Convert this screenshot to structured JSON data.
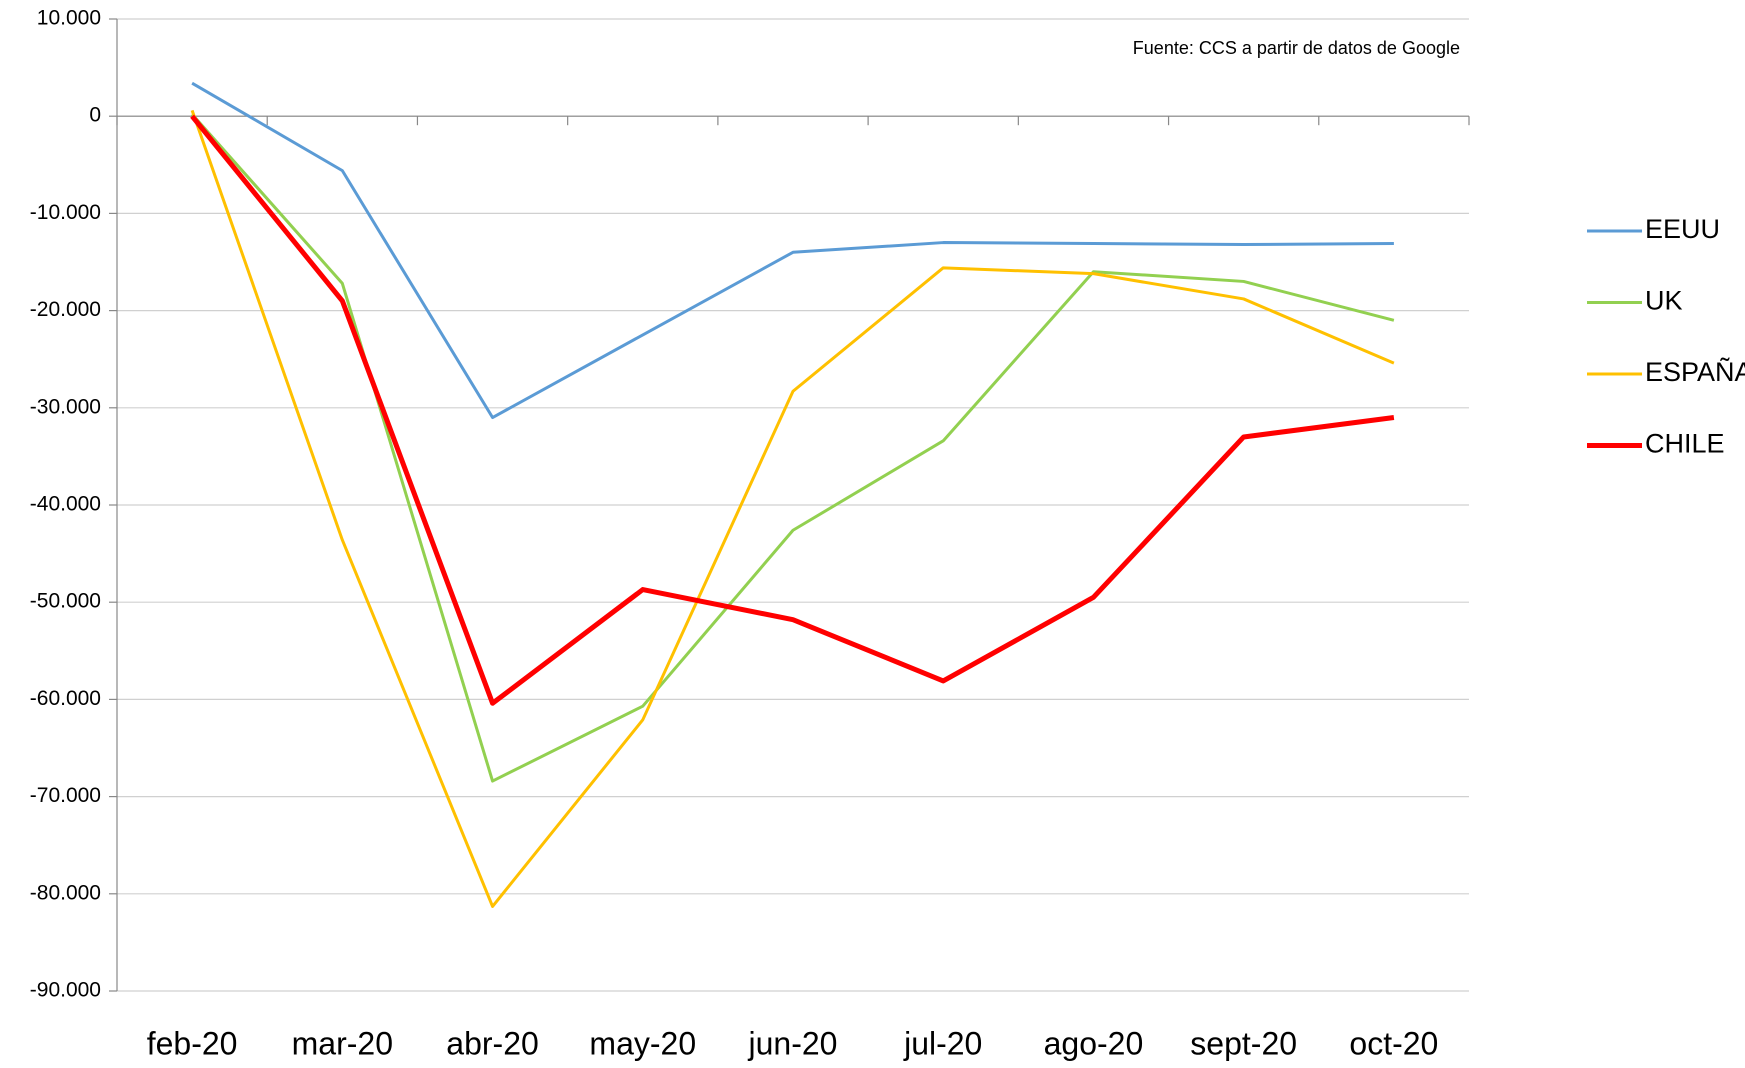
{
  "chart_data": {
    "type": "line",
    "annotation": "Fuente: CCS a partir de datos de Google",
    "categories": [
      "feb-20",
      "mar-20",
      "abr-20",
      "may-20",
      "jun-20",
      "jul-20",
      "ago-20",
      "sept-20",
      "oct-20"
    ],
    "series": [
      {
        "name": "EEUU",
        "color": "#5b9bd5",
        "values": [
          3400,
          -5600,
          -31000,
          -22500,
          -14000,
          -13000,
          -13100,
          -13200,
          -13100
        ]
      },
      {
        "name": "UK",
        "color": "#92d050",
        "values": [
          200,
          -17200,
          -68400,
          -60700,
          -42600,
          -33400,
          -16000,
          -17000,
          -21000
        ]
      },
      {
        "name": "ESPAÑA",
        "color": "#ffc000",
        "values": [
          600,
          -43600,
          -81300,
          -62100,
          -28300,
          -15600,
          -16200,
          -18800,
          -25400
        ]
      },
      {
        "name": "CHILE",
        "color": "#ff0000",
        "values": [
          0,
          -19000,
          -60400,
          -48700,
          -51800,
          -58100,
          -49500,
          -33000,
          -31000
        ]
      }
    ],
    "ylim": [
      -90000,
      10000
    ],
    "yticks": [
      {
        "value": 10000,
        "label": "10.000"
      },
      0,
      {
        "value": -10000,
        "label": "-10.000"
      },
      {
        "value": -20000,
        "label": "-20.000"
      },
      {
        "value": -30000,
        "label": "-30.000"
      },
      {
        "value": -40000,
        "label": "-40.000"
      },
      {
        "value": -50000,
        "label": "-50.000"
      },
      {
        "value": -60000,
        "label": "-60.000"
      },
      {
        "value": -70000,
        "label": "-70.000"
      },
      {
        "value": -80000,
        "label": "-80.000"
      },
      {
        "value": -90000,
        "label": "-90.000"
      }
    ],
    "grid": true,
    "legend": "right"
  }
}
